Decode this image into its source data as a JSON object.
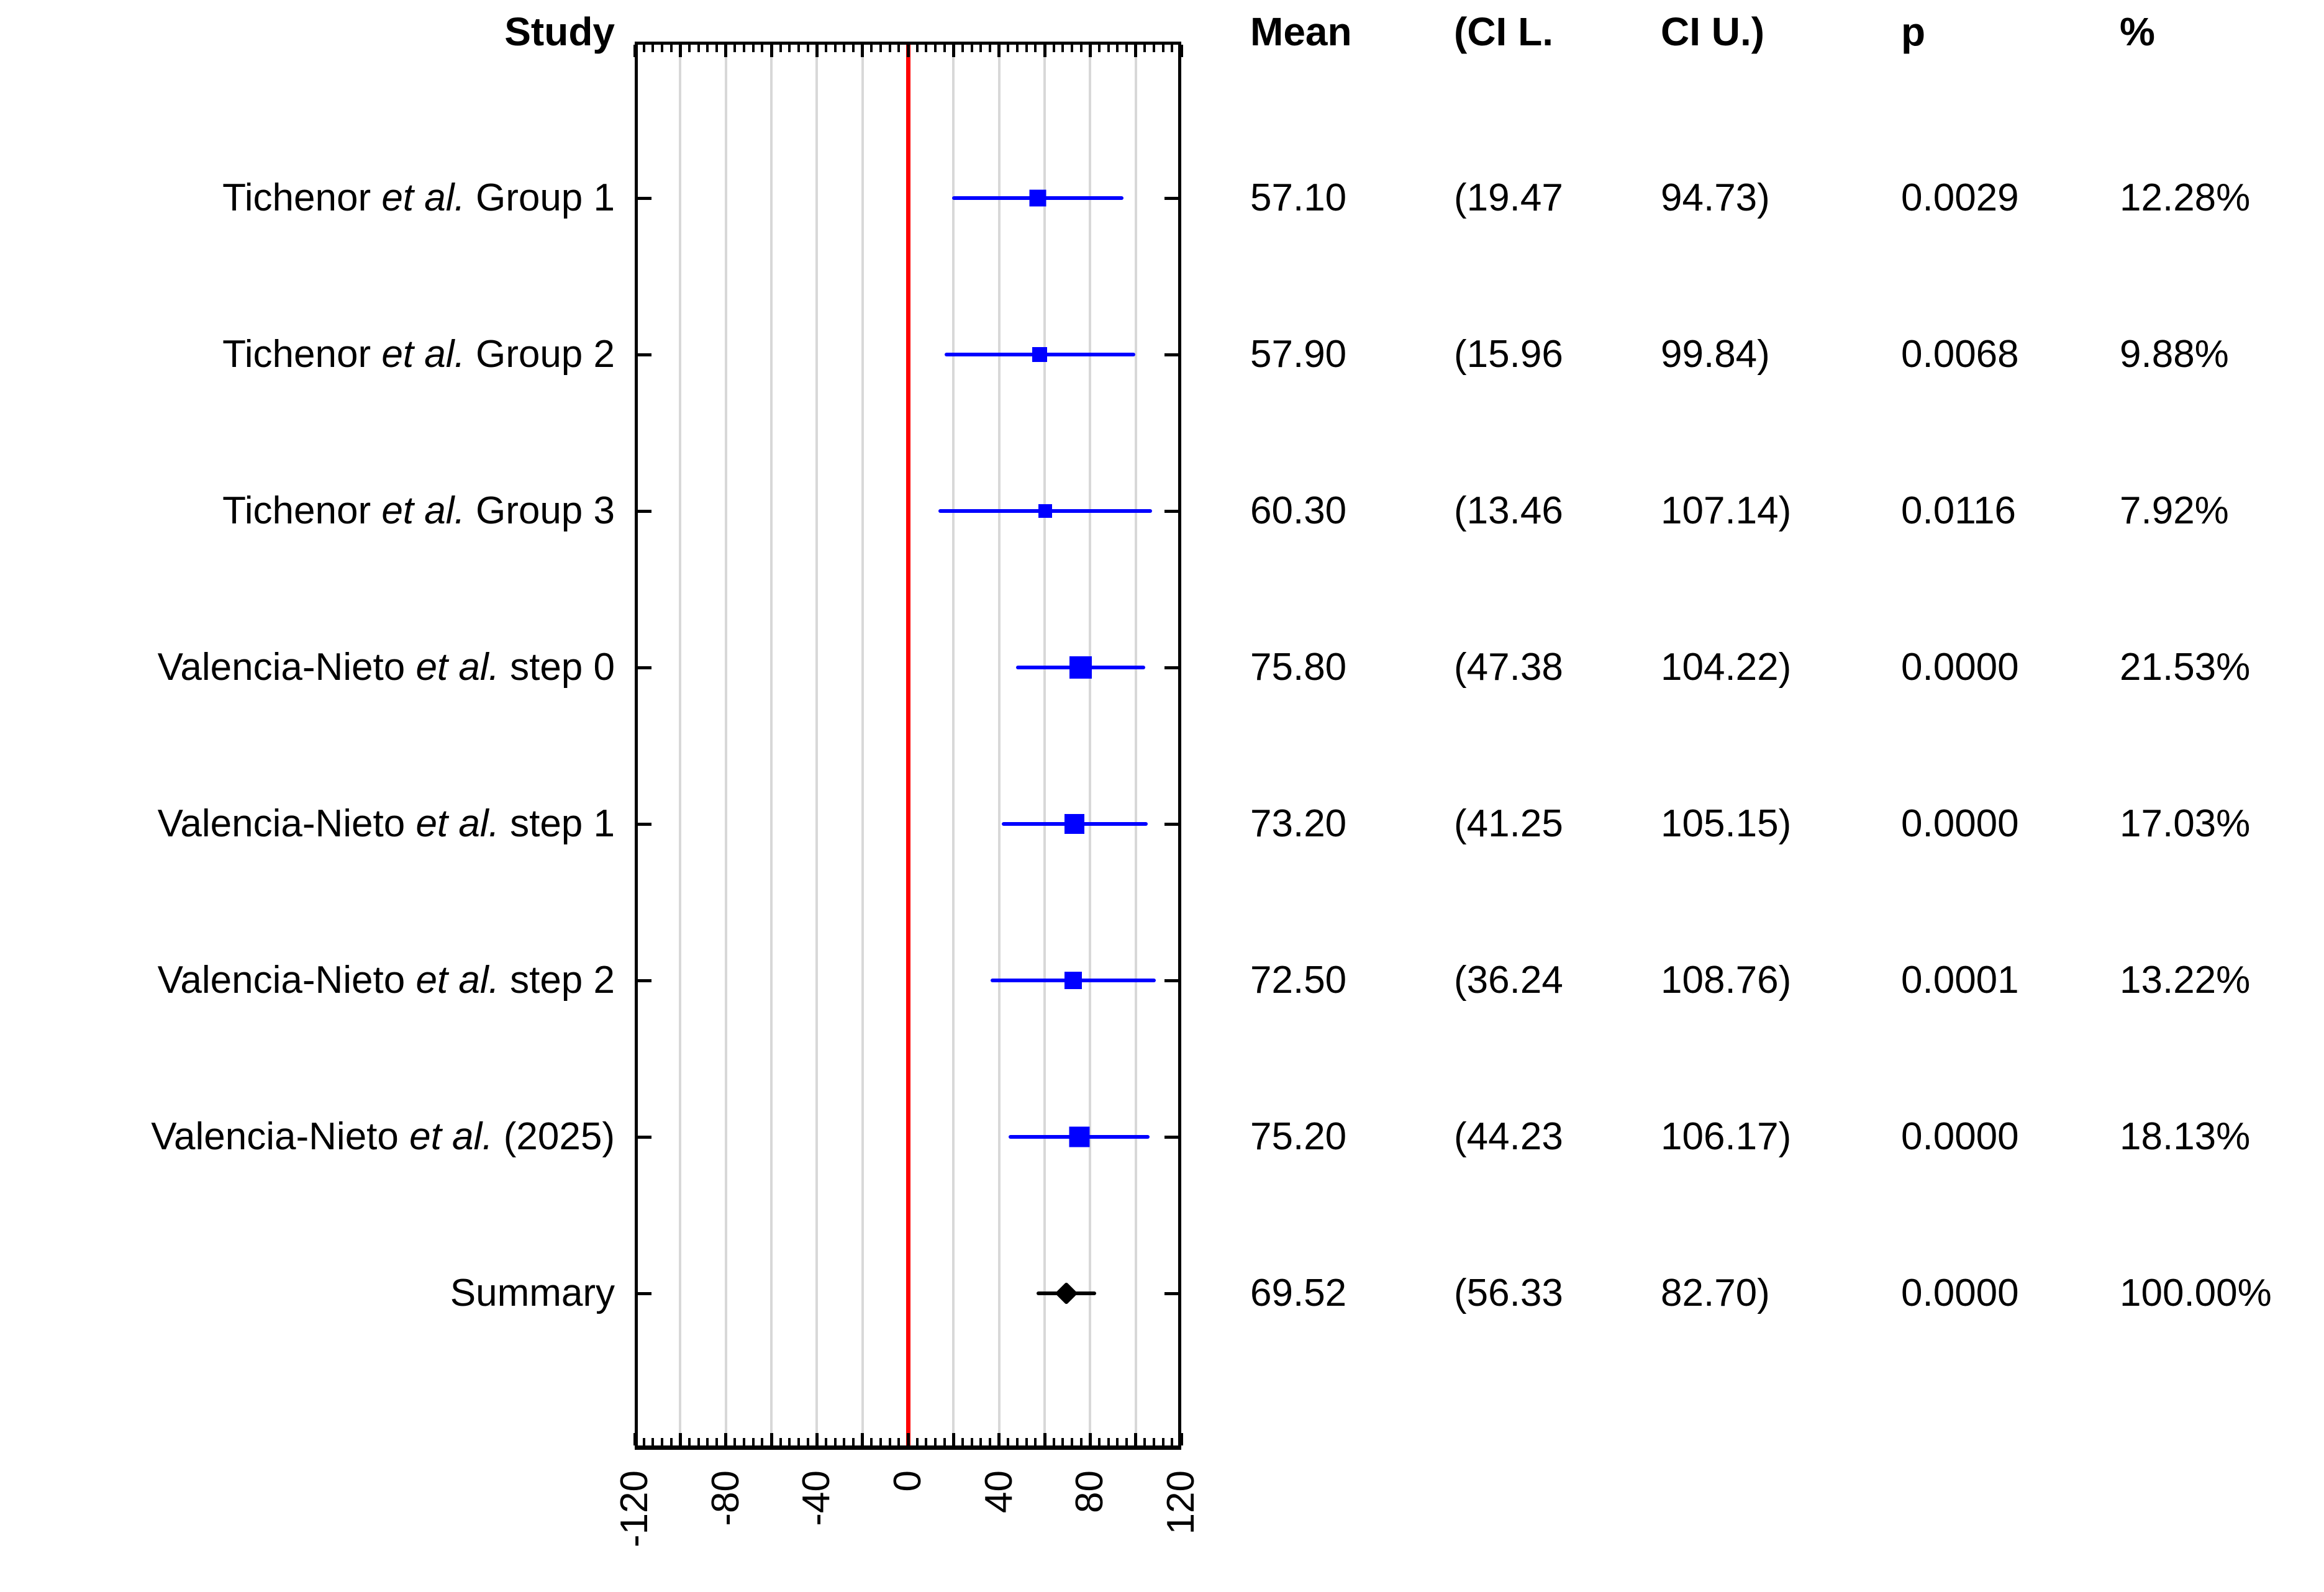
{
  "table": {
    "headers": {
      "study": "Study",
      "mean": "Mean",
      "ci_l": "(CI L.",
      "ci_u": "CI U.)",
      "p": "p",
      "weight": "%"
    }
  },
  "chart_data": {
    "type": "scatter",
    "subtype": "forest-plot",
    "title": "",
    "xlabel": "",
    "ylabel": "",
    "x_axis": {
      "min": -120,
      "max": 120,
      "gridline_step": 20,
      "major_tick_step": 20,
      "minor_tick_step": 4,
      "tick_labels": [
        "-120",
        "-80",
        "-40",
        "0",
        "40",
        "80",
        "120"
      ],
      "tick_label_rotation_deg": -90
    },
    "reference_line_x": 0,
    "grid": true,
    "legend": false,
    "colors": {
      "study_marker": "#0000ff",
      "summary_marker": "#000000",
      "reference_line": "#ff0000",
      "gridline": "#d8d8d8",
      "frame": "#000000",
      "text": "#000000"
    },
    "rows": [
      {
        "label_pre": "Tichenor ",
        "label_italic": "et al.",
        "label_post": " Group 1",
        "mean": 57.1,
        "ci_lower": 19.47,
        "ci_upper": 94.73,
        "weight_value": 12.28,
        "summary": false,
        "display": {
          "mean": "57.10",
          "ci_l": "(19.47",
          "ci_u": "94.73)",
          "p": "0.0029",
          "weight": "12.28%"
        }
      },
      {
        "label_pre": "Tichenor ",
        "label_italic": "et al.",
        "label_post": " Group 2",
        "mean": 57.9,
        "ci_lower": 15.96,
        "ci_upper": 99.84,
        "weight_value": 9.88,
        "summary": false,
        "display": {
          "mean": "57.90",
          "ci_l": "(15.96",
          "ci_u": "99.84)",
          "p": "0.0068",
          "weight": "9.88%"
        }
      },
      {
        "label_pre": "Tichenor ",
        "label_italic": "et al.",
        "label_post": " Group 3",
        "mean": 60.3,
        "ci_lower": 13.46,
        "ci_upper": 107.14,
        "weight_value": 7.92,
        "summary": false,
        "display": {
          "mean": "60.30",
          "ci_l": "(13.46",
          "ci_u": "107.14)",
          "p": "0.0116",
          "weight": "7.92%"
        }
      },
      {
        "label_pre": "Valencia-Nieto ",
        "label_italic": "et al.",
        "label_post": " step 0",
        "mean": 75.8,
        "ci_lower": 47.38,
        "ci_upper": 104.22,
        "weight_value": 21.53,
        "summary": false,
        "display": {
          "mean": "75.80",
          "ci_l": "(47.38",
          "ci_u": "104.22)",
          "p": "0.0000",
          "weight": "21.53%"
        }
      },
      {
        "label_pre": "Valencia-Nieto ",
        "label_italic": "et al.",
        "label_post": " step 1",
        "mean": 73.2,
        "ci_lower": 41.25,
        "ci_upper": 105.15,
        "weight_value": 17.03,
        "summary": false,
        "display": {
          "mean": "73.20",
          "ci_l": "(41.25",
          "ci_u": "105.15)",
          "p": "0.0000",
          "weight": "17.03%"
        }
      },
      {
        "label_pre": "Valencia-Nieto ",
        "label_italic": "et al.",
        "label_post": " step 2",
        "mean": 72.5,
        "ci_lower": 36.24,
        "ci_upper": 108.76,
        "weight_value": 13.22,
        "summary": false,
        "display": {
          "mean": "72.50",
          "ci_l": "(36.24",
          "ci_u": "108.76)",
          "p": "0.0001",
          "weight": "13.22%"
        }
      },
      {
        "label_pre": "Valencia-Nieto ",
        "label_italic": "et al.",
        "label_post": " (2025)",
        "mean": 75.2,
        "ci_lower": 44.23,
        "ci_upper": 106.17,
        "weight_value": 18.13,
        "summary": false,
        "display": {
          "mean": "75.20",
          "ci_l": "(44.23",
          "ci_u": "106.17)",
          "p": "0.0000",
          "weight": "18.13%"
        }
      },
      {
        "label_pre": "Summary",
        "label_italic": "",
        "label_post": "",
        "mean": 69.52,
        "ci_lower": 56.33,
        "ci_upper": 82.7,
        "weight_value": 100.0,
        "summary": true,
        "display": {
          "mean": "69.52",
          "ci_l": "(56.33",
          "ci_u": "82.70)",
          "p": "0.0000",
          "weight": "100.00%"
        }
      }
    ]
  }
}
